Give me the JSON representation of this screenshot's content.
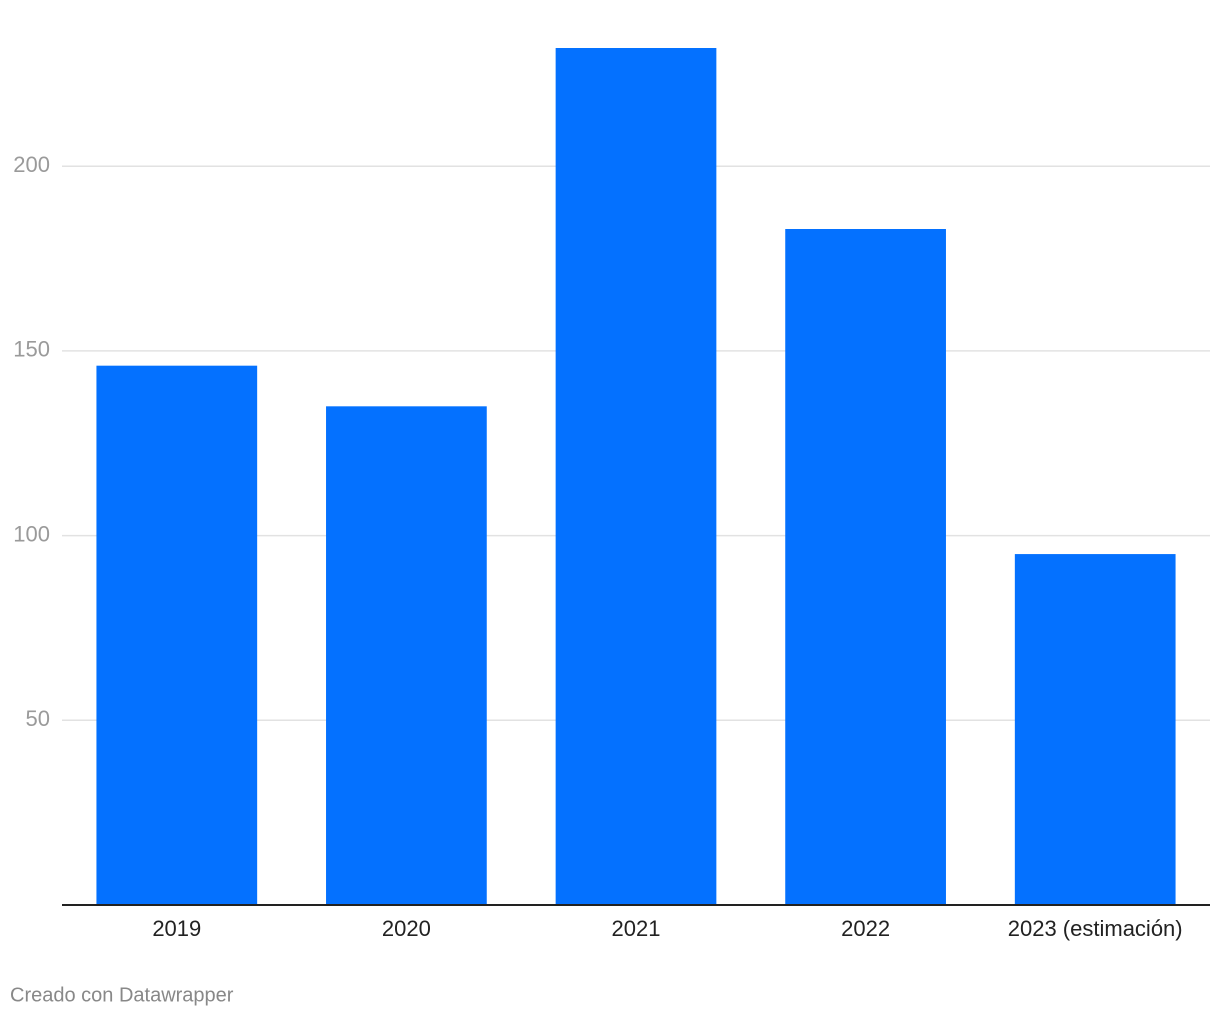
{
  "chart_data": {
    "type": "bar",
    "categories": [
      "2019",
      "2020",
      "2021",
      "2022",
      "2023 (estimación)"
    ],
    "values": [
      146,
      135,
      232,
      183,
      95
    ],
    "color": "#0471ff",
    "ylim": [
      0,
      232
    ],
    "yticks": [
      50,
      100,
      150,
      200
    ],
    "grid": true,
    "credit": "Creado con Datawrapper"
  }
}
